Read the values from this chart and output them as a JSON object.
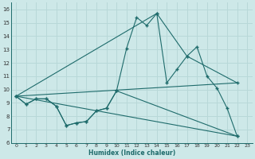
{
  "xlabel": "Humidex (Indice chaleur)",
  "xlim": [
    -0.5,
    23.5
  ],
  "ylim": [
    6,
    16.5
  ],
  "yticks": [
    6,
    7,
    8,
    9,
    10,
    11,
    12,
    13,
    14,
    15,
    16
  ],
  "xticks": [
    0,
    1,
    2,
    3,
    4,
    5,
    6,
    7,
    8,
    9,
    10,
    11,
    12,
    13,
    14,
    15,
    16,
    17,
    18,
    19,
    20,
    21,
    22,
    23
  ],
  "bg_color": "#cde8e8",
  "grid_color": "#b8d8d8",
  "line_color": "#1e6b6b",
  "curve1_x": [
    0,
    1,
    2,
    3,
    4,
    5,
    6,
    7,
    8,
    9,
    10,
    11,
    12,
    13,
    14,
    15,
    16,
    17,
    18,
    19,
    20,
    21,
    22
  ],
  "curve1_y": [
    9.5,
    8.9,
    9.3,
    9.3,
    8.75,
    7.3,
    7.5,
    7.6,
    8.4,
    8.6,
    9.9,
    13.1,
    15.4,
    14.8,
    15.7,
    10.5,
    11.5,
    12.5,
    13.2,
    11.0,
    10.1,
    8.6,
    6.5
  ],
  "curve2_x": [
    0,
    1,
    2,
    3,
    4,
    5,
    6,
    7,
    8,
    9,
    10,
    22
  ],
  "curve2_y": [
    9.5,
    8.9,
    9.3,
    9.3,
    8.75,
    7.3,
    7.5,
    7.6,
    8.4,
    8.6,
    9.9,
    6.5
  ],
  "line3_x": [
    0,
    22
  ],
  "line3_y": [
    9.5,
    10.5
  ],
  "line4_x": [
    0,
    14,
    17,
    22
  ],
  "line4_y": [
    9.5,
    15.7,
    12.5,
    10.5
  ],
  "line5_x": [
    0,
    22
  ],
  "line5_y": [
    9.5,
    6.5
  ]
}
